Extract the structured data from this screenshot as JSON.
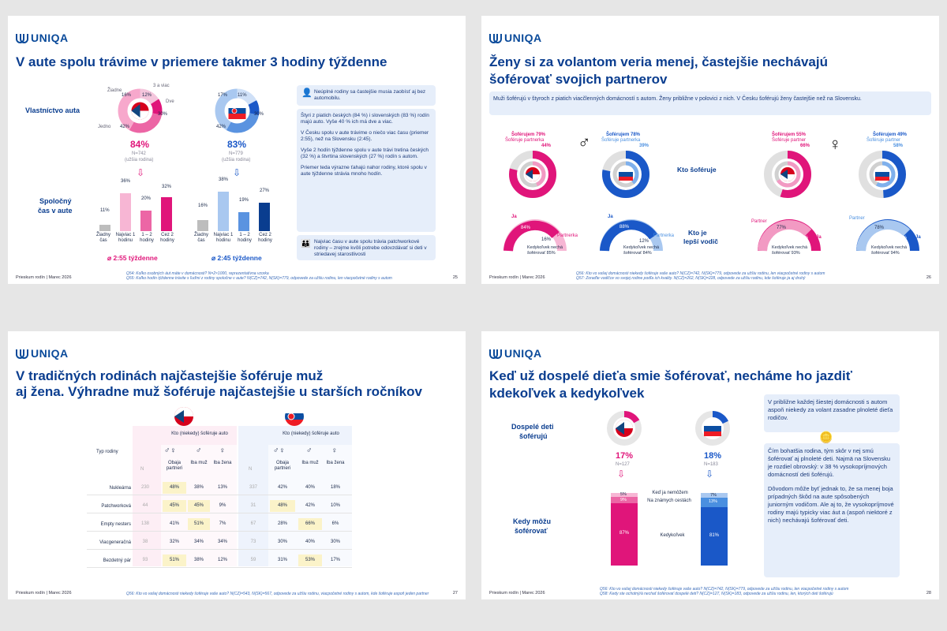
{
  "footer_left": "Prieskum rodín | Marec 2026",
  "brand": "UNIQA",
  "s1": {
    "title": "V aute spolu trávime v priemere takmer 3 hodiny týždenne",
    "row1": "Vlastníctvo auta",
    "row2a": "Spoločný",
    "row2b": "čas v aute",
    "cz": {
      "pct": "84%",
      "n": "N=742",
      "sub": "(užšia rodina)",
      "avg": "2:55 týždenne",
      "donut": [
        16,
        12,
        30,
        42
      ],
      "donut_labels": [
        "Žiadne",
        "3 a viac",
        "Dve",
        "Jedno"
      ],
      "bars": [
        11,
        36,
        20,
        32
      ]
    },
    "sk": {
      "pct": "83%",
      "n": "N=779",
      "sub": "(užšia rodina)",
      "avg": "2:45 týždenne",
      "donut": [
        17,
        11,
        30,
        42
      ],
      "bars": [
        16,
        38,
        19,
        27
      ]
    },
    "bar_labels": [
      "Žiadny čas",
      "Najviac 1 hodinu",
      "1 – 2 hodiny",
      "Cez 2 hodiny"
    ],
    "note_top": "Neúplné rodiny sa častejšie musia zaobísť aj bez automobilu.",
    "note_main": [
      "Štyri z piatich českých (84 %) i slovenských (83 %) rodín majú auto. Vyše 40 % ich má dve a viac.",
      "V Česku spolu v aute trávime o niečo viac času (priemer 2:55), než na Slovensku (2:45).",
      "Vyše 2 hodín týždenne spolu v aute trávi tretina českých (32 %) a štvrtina slovenských (27 %) rodín s autom.",
      "Priemer teda výrazne ťahajú nahor rodiny, ktoré spolu v aute týždenne strávia mnoho hodín."
    ],
    "note_bottom": "Najviac času v aute spolu trávia patchworkové rodiny – zrejme kvôli potrebe odovzdávať si deti v striedavej starostlivosti",
    "notes": [
      "Q54: Koľko osobných áut máte v domácnosti? N=2×1000, reprezentatívna vzorka",
      "Q55: Koľko hodín týždenne trávite s ľuďmi z rodiny spoločne v aute? N(CZ)=742, N(SK)=779, odpovede za užšiu rodinu, len viacpočetné rodiny s autom"
    ],
    "page": "25"
  },
  "s2": {
    "title1": "Ženy si za volantom veria menej, častejšie nechávajú",
    "title2": "šoférovať svojich partnerov",
    "banner": "Muži šoférujú v štyroch z piatich viacčlenných domácností s autom. Ženy približne v polovici z nich. V Česku šoférujú ženy častejšie než na Slovensku.",
    "mid1": "Kto šoféruje",
    "mid2a": "Kto je",
    "mid2b": "lepší vodič",
    "m_cz": {
      "a": "Šoférujem 79%",
      "b": "Šoféruje partnerka",
      "c": "44%",
      "semi": [
        84,
        16
      ],
      "ja": "Ja",
      "p": "Partnerka",
      "k": "Kedykoľvek nechá šoférovať 85%"
    },
    "m_sk": {
      "a": "Šoférujem 78%",
      "b": "Šoféruje partnerka",
      "c": "39%",
      "semi": [
        88,
        12
      ],
      "ja": "Ja",
      "p": "Partnerka",
      "k": "Kedykoľvek nechá šoférovať 84%"
    },
    "w_cz": {
      "a": "Šoférujem 55%",
      "b": "Šoféruje partner",
      "c": "66%",
      "semi": [
        77,
        23
      ],
      "ja": "Ja",
      "p": "Partner",
      "k": "Kedykoľvek nechá šoférovať 93%"
    },
    "w_sk": {
      "a": "Šoférujem 49%",
      "b": "Šoféruje partner",
      "c": "58%",
      "semi": [
        78,
        22
      ],
      "ja": "Ja",
      "p": "Partner",
      "k": "Kedykoľvek nechá šoférovať 94%"
    },
    "notes": [
      "Q56: Kto vo vašej domácnosti niekedy šoféruje vaše auto? N(CZ)=742, N(SK)=779, odpovede za užšiu rodinu, len viacpočetné rodiny s autom",
      "Q57: Zoraďte vodičov vo svojej rodine podľa ich kvality. N(CZ)=262, N(SK)=228, odpovede za užšiu rodinu, kde šoféruje ja aj druhý"
    ],
    "page": "26"
  },
  "s3": {
    "title1": "V tradičných rodinách najčastejšie šoféruje muž",
    "title2": "aj žena. Výhradne muž šoféruje najčastejšie u starších ročníkov",
    "hdr": "Kto (niekedy) šoféruje auto",
    "typ": "Typ rodiny",
    "cols": [
      "Obaja partneri",
      "Iba muž",
      "Iba žena"
    ],
    "rows": [
      {
        "name": "Nukleárna",
        "cz": [
          "230",
          "48%",
          "38%",
          "13%"
        ],
        "sk": [
          "337",
          "42%",
          "40%",
          "18%"
        ]
      },
      {
        "name": "Patchworková",
        "cz": [
          "44",
          "45%",
          "45%",
          "9%"
        ],
        "sk": [
          "31",
          "48%",
          "42%",
          "10%"
        ]
      },
      {
        "name": "Empty nesters",
        "cz": [
          "138",
          "41%",
          "51%",
          "7%"
        ],
        "sk": [
          "67",
          "28%",
          "66%",
          "6%"
        ]
      },
      {
        "name": "Viacgeneračná",
        "cz": [
          "38",
          "32%",
          "34%",
          "34%"
        ],
        "sk": [
          "73",
          "30%",
          "40%",
          "30%"
        ]
      },
      {
        "name": "Bezdetný pár",
        "cz": [
          "93",
          "51%",
          "38%",
          "12%"
        ],
        "sk": [
          "59",
          "31%",
          "53%",
          "17%"
        ]
      }
    ],
    "notes": "Q56: Kto vo vašej domácnosti niekedy šoféruje vaše auto? N(CZ)=543, N(SK)=567, odpovede za užšiu rodinu, viacpočetné rodiny s autom, kde šoféruje aspoň jeden partner",
    "page": "27"
  },
  "s4": {
    "title1": "Keď už dospelé dieťa smie šoférovať, necháme ho jazdiť",
    "title2": "kdekoľvek a kedykoľvek",
    "l1a": "Dospelé deti",
    "l1b": "šoférujú",
    "l2a": "Kedy môžu",
    "l2b": "šoférovať",
    "cz": {
      "pct": "17%",
      "n": "N=127",
      "stack": [
        5,
        9,
        87
      ]
    },
    "sk": {
      "pct": "18%",
      "n": "N=183",
      "stack": [
        7,
        13,
        81
      ]
    },
    "stack_labels": [
      "Keď ja nemôžem",
      "Na známych cestách",
      "Kedykoľvek"
    ],
    "box1": "V približne každej šiestej domácnosti s autom aspoň niekedy za volant zasadne plnoleté dieťa rodičov.",
    "box2": [
      "Čím bohatšia rodina, tým skôr v nej smú šoférovať aj plnoleté deti. Najmä na Slovensku je rozdiel obrovský: v 38 % vysokopríjmových domácností deti šoférujú.",
      "Dôvodom môže byť jednak to, že sa menej boja prípadných škôd na aute spôsobených juniorným vodičom. Ale aj to, že vysokopríjmové rodiny majú typicky viac áut a (aspoň niektoré z nich) nechávajú šoférovať deti."
    ],
    "notes": [
      "Q56: Kto vo vašej domácnosti niekedy šoféruje vaše auto? N(CZ)=742, N(SK)=779, odpovede za užšiu rodinu, len viacpočetné rodiny s autom",
      "Q58: Kedy ste ochotný/á nechať šoférovať dospelé deti? N(CZ)=127, N(SK)=183, odpovede za užšiu rodinu, len, ktorých deti šoférujú"
    ],
    "page": "28"
  },
  "colors": {
    "pink": "#e0157a",
    "blue": "#1a58c8",
    "navy": "#0a3d8f"
  }
}
